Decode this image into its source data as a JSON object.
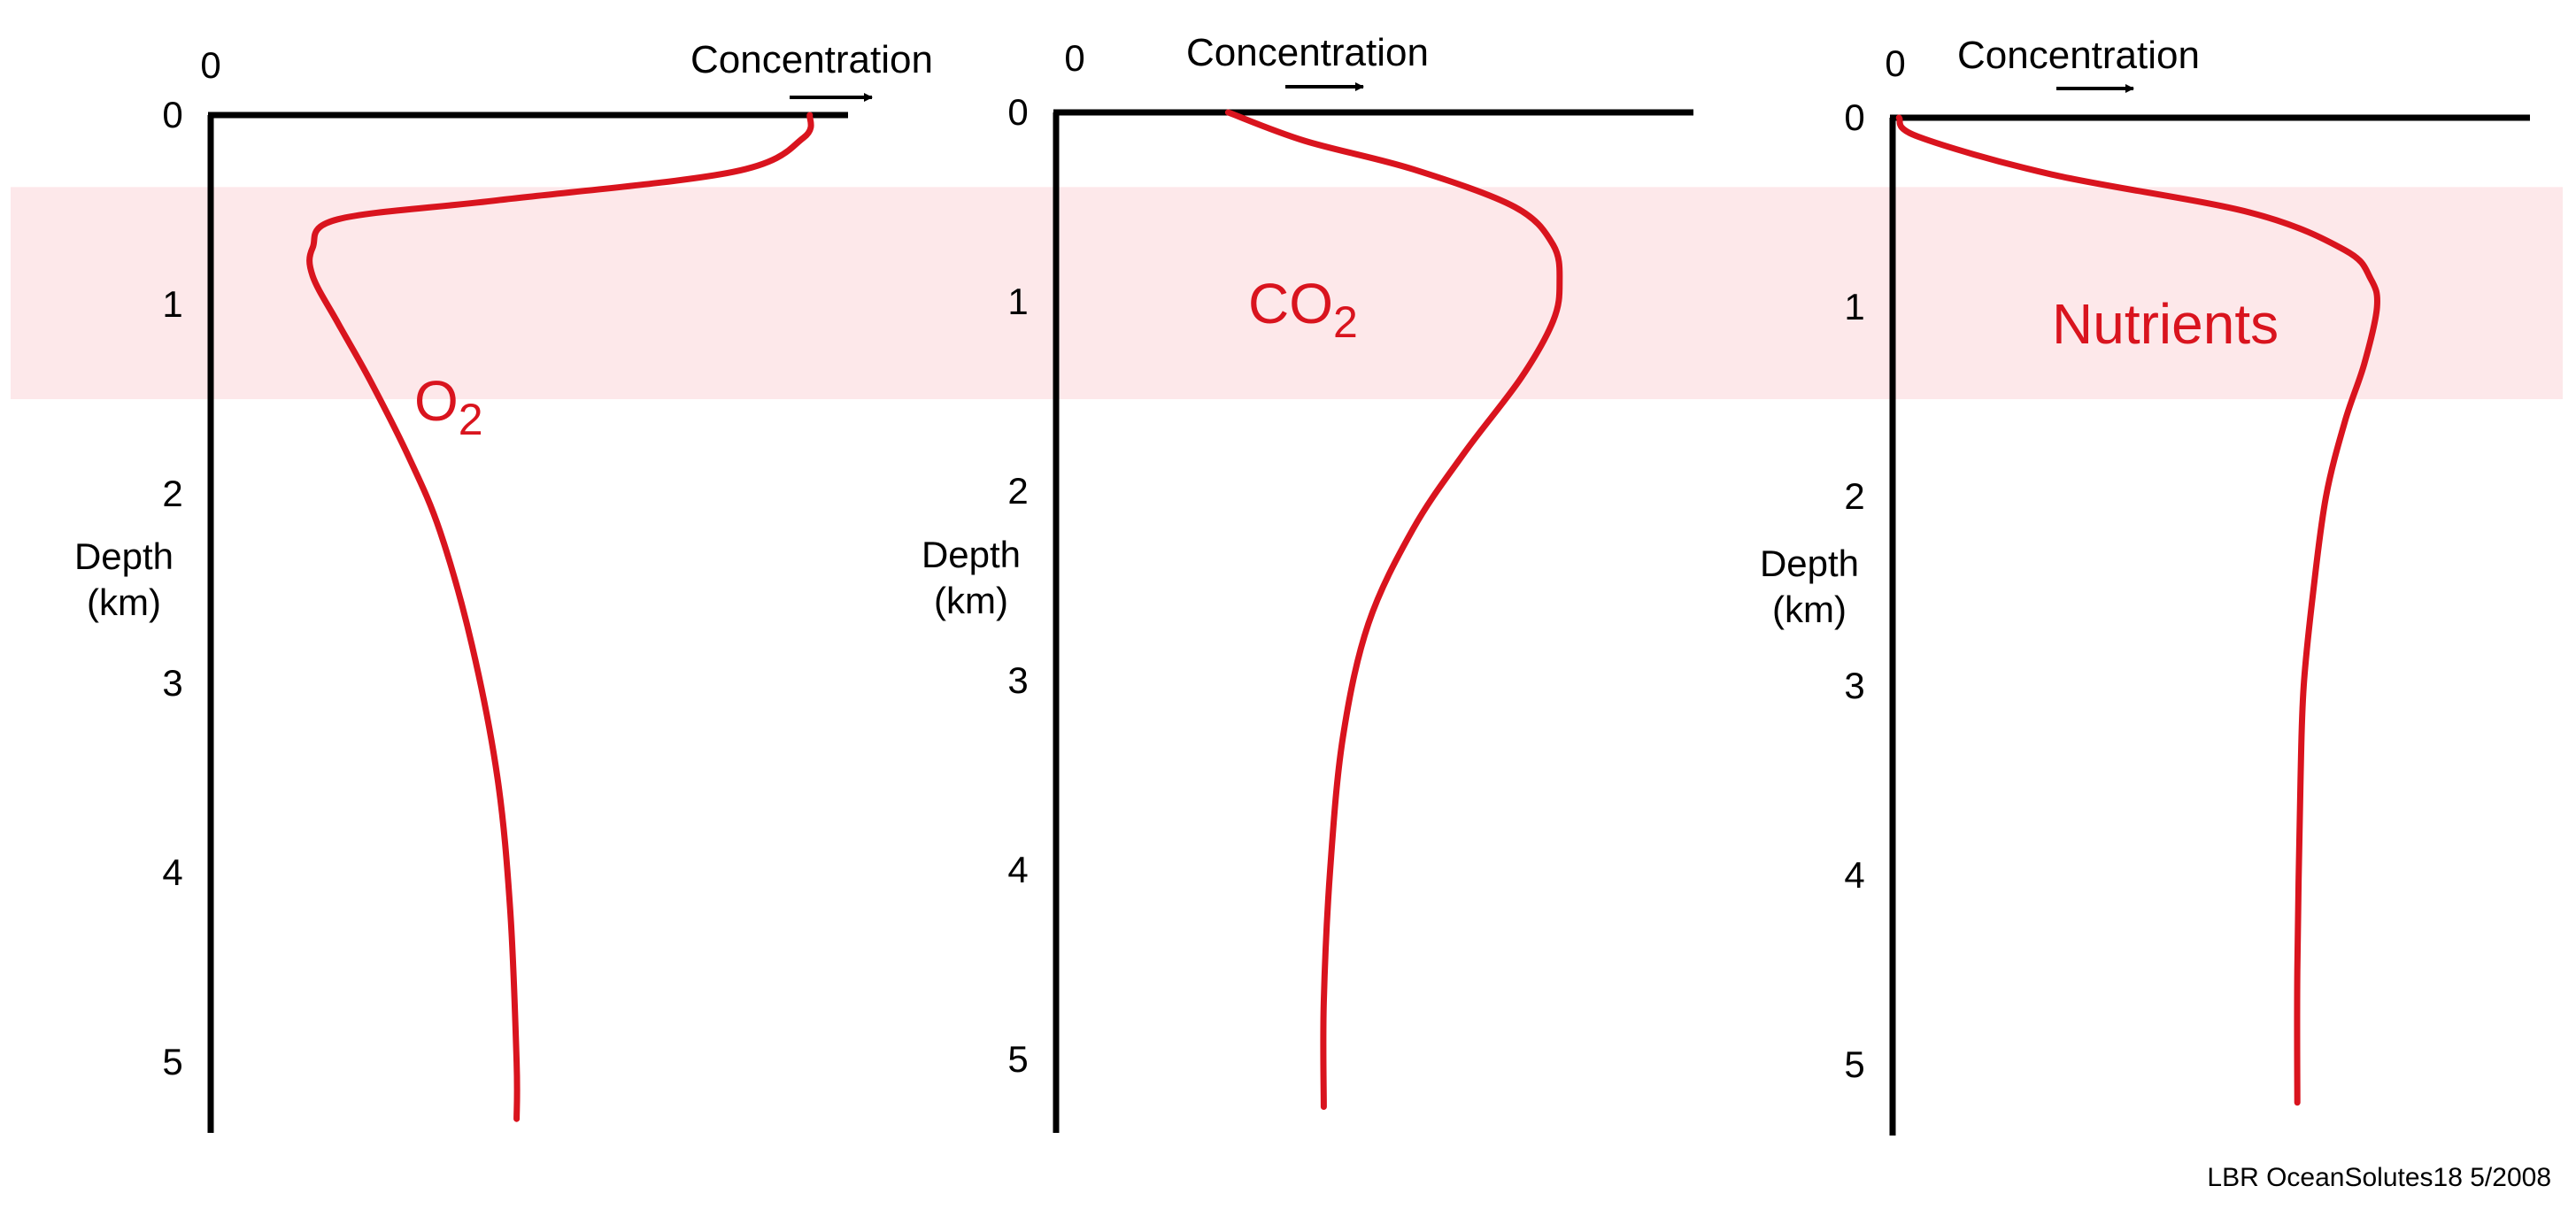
{
  "colors": {
    "background": "#ffffff",
    "axis": "#000000",
    "profile": "#d9141e",
    "oxygen_minimum_zone_band": "#fde8ea"
  },
  "footer": {
    "credit": "LBR  OceanSolutes18   5/2008"
  },
  "chart_data": [
    {
      "type": "line",
      "title": "",
      "series_label": "O",
      "series_label_subscript": "2",
      "xlabel": "Concentration",
      "x_origin_label": "0",
      "x_direction": "increasing to the right (arrow)",
      "ylabel_line1": "Depth",
      "ylabel_line2": "(km)",
      "y_ticks": [
        "0",
        "1",
        "2",
        "3",
        "4",
        "5"
      ],
      "ylim": [
        0,
        5.3
      ],
      "xlim": [
        0,
        1
      ],
      "y_inverted": true,
      "highlight_band_depth_km": [
        0.38,
        1.5
      ],
      "grid": false,
      "points": [
        {
          "depth": 0.0,
          "conc": 0.94
        },
        {
          "depth": 0.12,
          "conc": 0.93
        },
        {
          "depth": 0.3,
          "conc": 0.82
        },
        {
          "depth": 0.45,
          "conc": 0.45
        },
        {
          "depth": 0.55,
          "conc": 0.2
        },
        {
          "depth": 0.7,
          "conc": 0.16
        },
        {
          "depth": 0.85,
          "conc": 0.16
        },
        {
          "depth": 1.1,
          "conc": 0.2
        },
        {
          "depth": 1.4,
          "conc": 0.25
        },
        {
          "depth": 1.8,
          "conc": 0.31
        },
        {
          "depth": 2.2,
          "conc": 0.36
        },
        {
          "depth": 2.8,
          "conc": 0.41
        },
        {
          "depth": 3.5,
          "conc": 0.45
        },
        {
          "depth": 4.2,
          "conc": 0.47
        },
        {
          "depth": 5.0,
          "conc": 0.48
        },
        {
          "depth": 5.3,
          "conc": 0.48
        }
      ]
    },
    {
      "type": "line",
      "title": "",
      "series_label": "CO",
      "series_label_subscript": "2",
      "xlabel": "Concentration",
      "x_origin_label": "0",
      "x_direction": "increasing to the right (arrow)",
      "ylabel_line1": "Depth",
      "ylabel_line2": "(km)",
      "y_ticks": [
        "0",
        "1",
        "2",
        "3",
        "4",
        "5"
      ],
      "ylim": [
        0,
        5.3
      ],
      "xlim": [
        0,
        1
      ],
      "y_inverted": true,
      "highlight_band_depth_km": [
        0.38,
        1.5
      ],
      "grid": false,
      "points": [
        {
          "depth": 0.0,
          "conc": 0.27
        },
        {
          "depth": 0.15,
          "conc": 0.39
        },
        {
          "depth": 0.3,
          "conc": 0.56
        },
        {
          "depth": 0.5,
          "conc": 0.72
        },
        {
          "depth": 0.7,
          "conc": 0.78
        },
        {
          "depth": 0.9,
          "conc": 0.79
        },
        {
          "depth": 1.1,
          "conc": 0.78
        },
        {
          "depth": 1.4,
          "conc": 0.73
        },
        {
          "depth": 1.8,
          "conc": 0.64
        },
        {
          "depth": 2.2,
          "conc": 0.56
        },
        {
          "depth": 2.7,
          "conc": 0.49
        },
        {
          "depth": 3.3,
          "conc": 0.45
        },
        {
          "depth": 4.0,
          "conc": 0.43
        },
        {
          "depth": 4.7,
          "conc": 0.42
        },
        {
          "depth": 5.25,
          "conc": 0.42
        }
      ]
    },
    {
      "type": "line",
      "title": "",
      "series_label": "Nutrients",
      "series_label_subscript": "",
      "xlabel": "Concentration",
      "x_origin_label": "0",
      "x_direction": "increasing to the right (arrow)",
      "ylabel_line1": "Depth",
      "ylabel_line2": "(km)",
      "y_ticks": [
        "0",
        "1",
        "2",
        "3",
        "4",
        "5"
      ],
      "ylim": [
        0,
        5.3
      ],
      "xlim": [
        0,
        1
      ],
      "y_inverted": true,
      "highlight_band_depth_km": [
        0.38,
        1.5
      ],
      "grid": false,
      "points": [
        {
          "depth": 0.0,
          "conc": 0.01
        },
        {
          "depth": 0.1,
          "conc": 0.04
        },
        {
          "depth": 0.3,
          "conc": 0.25
        },
        {
          "depth": 0.5,
          "conc": 0.56
        },
        {
          "depth": 0.7,
          "conc": 0.71
        },
        {
          "depth": 0.85,
          "conc": 0.75
        },
        {
          "depth": 1.0,
          "conc": 0.76
        },
        {
          "depth": 1.3,
          "conc": 0.74
        },
        {
          "depth": 1.6,
          "conc": 0.71
        },
        {
          "depth": 2.0,
          "conc": 0.68
        },
        {
          "depth": 2.5,
          "conc": 0.66
        },
        {
          "depth": 3.0,
          "conc": 0.645
        },
        {
          "depth": 3.5,
          "conc": 0.64
        },
        {
          "depth": 4.5,
          "conc": 0.635
        },
        {
          "depth": 5.2,
          "conc": 0.635
        }
      ]
    }
  ]
}
